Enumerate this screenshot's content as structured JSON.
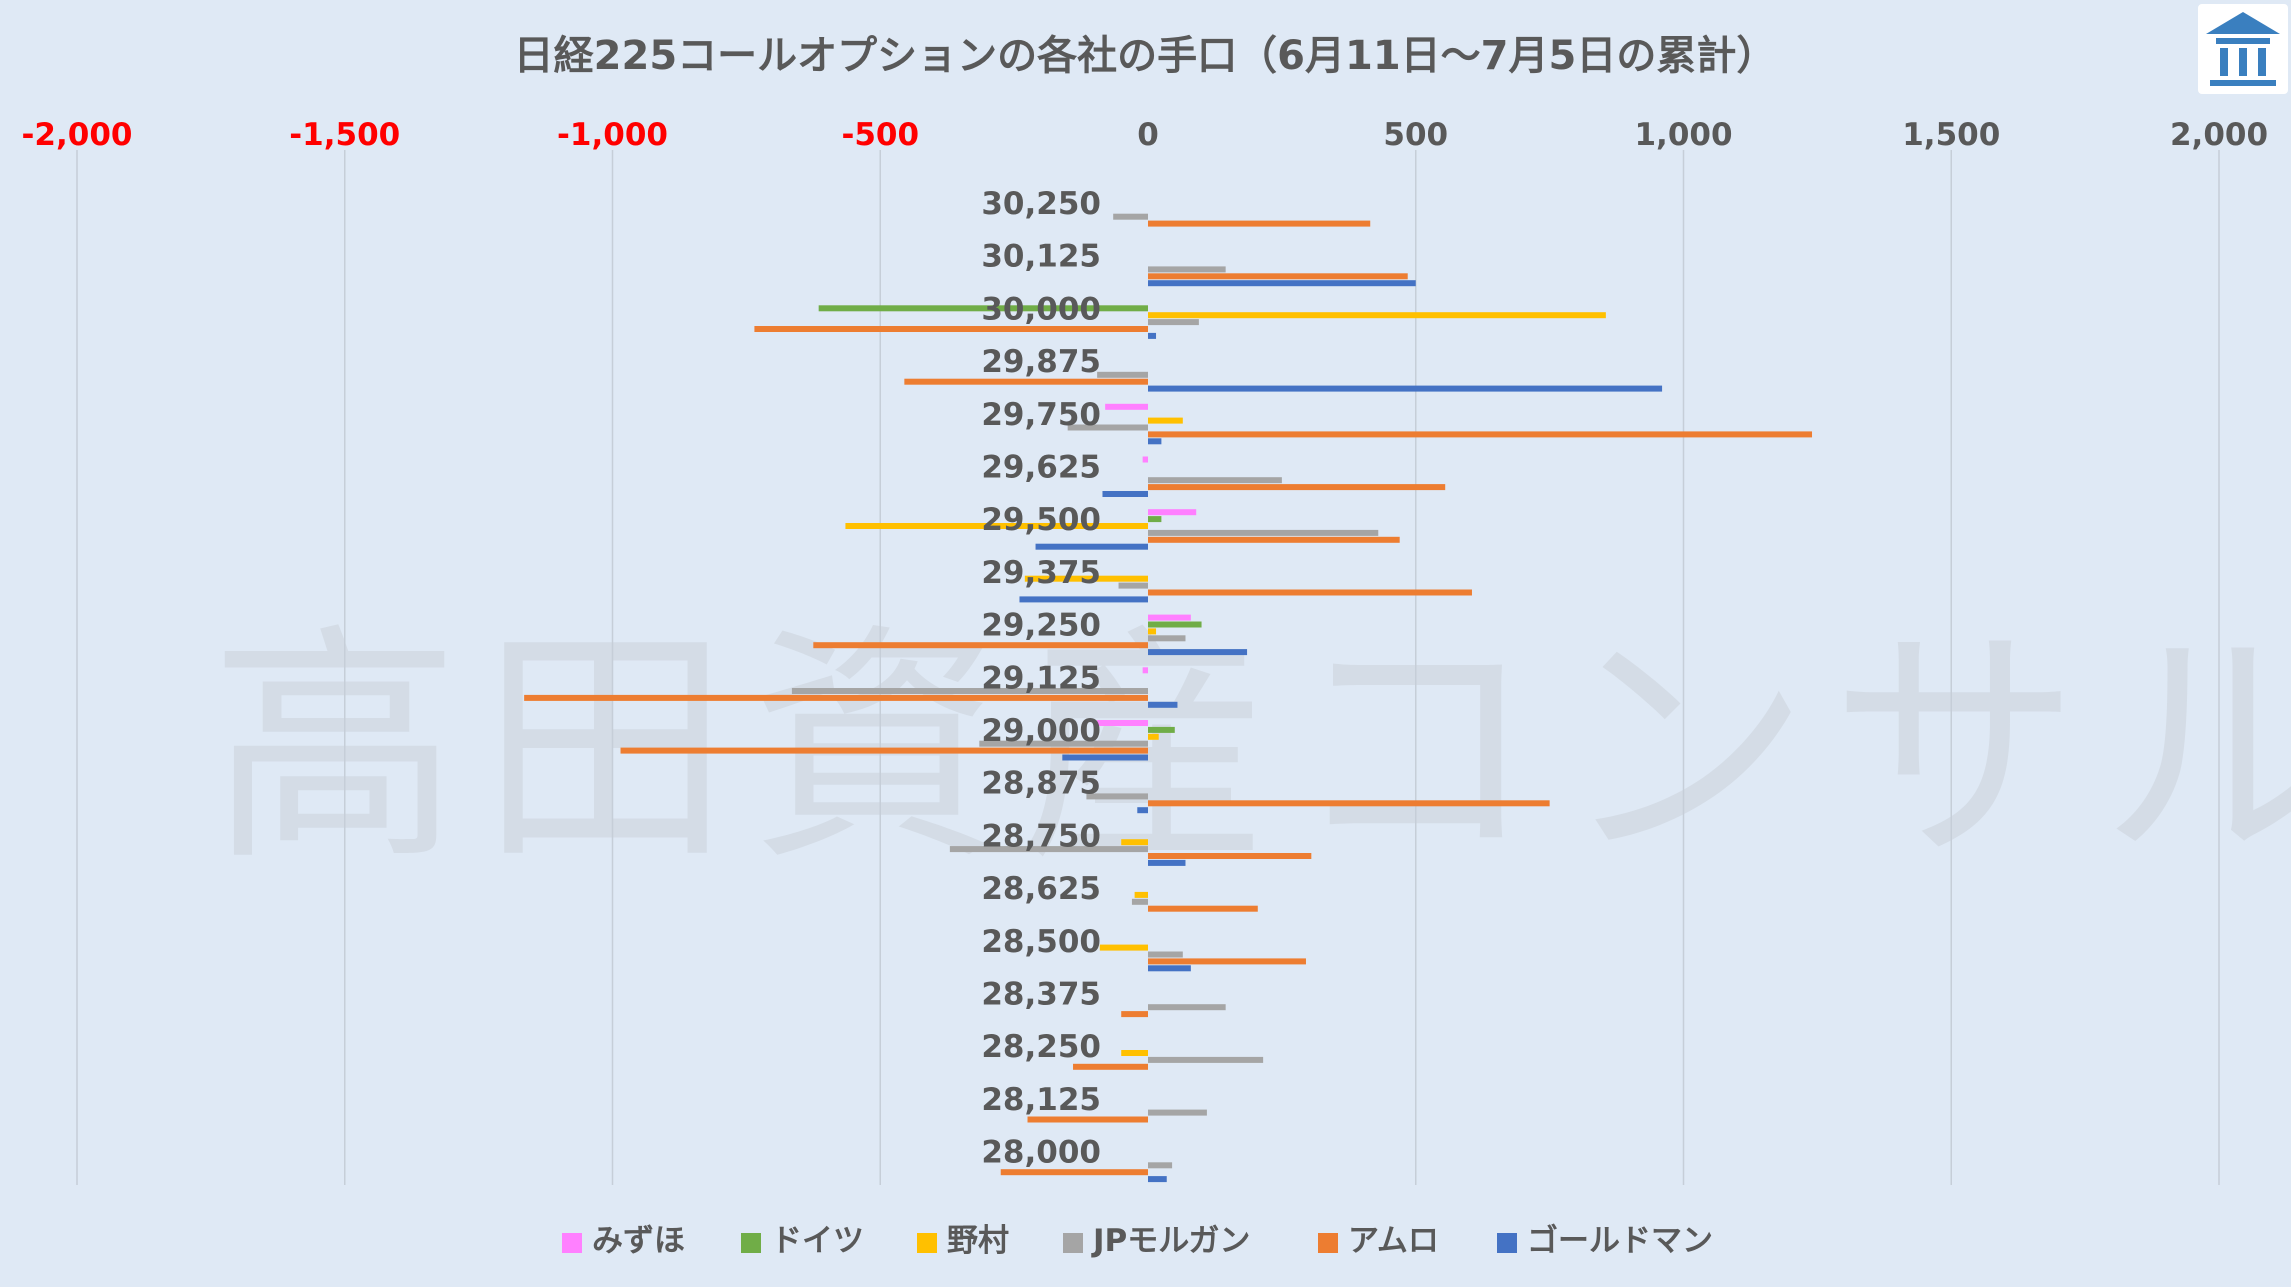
{
  "watermark": "高田資産コンサル",
  "chart_data": {
    "type": "bar",
    "orientation": "horizontal",
    "title": "日経225コールオプションの各社の手口（6月11日～7月5日の累計）",
    "xlabel": "",
    "ylabel": "",
    "xlim": [
      -2000,
      2000
    ],
    "x_ticks": [
      -2000,
      -1500,
      -1000,
      -500,
      0,
      500,
      1000,
      1500,
      2000
    ],
    "x_tick_labels": [
      "-2,000",
      "-1,500",
      "-1,000",
      "-500",
      "0",
      "500",
      "1,000",
      "1,500",
      "2,000"
    ],
    "negative_tick_color": "#ff0000",
    "positive_tick_color": "#595959",
    "axis_position": "top",
    "gridlines": "vertical",
    "legend_position": "bottom",
    "categories": [
      "30,250",
      "30,125",
      "30,000",
      "29,875",
      "29,750",
      "29,625",
      "29,500",
      "29,375",
      "29,250",
      "29,125",
      "29,000",
      "28,875",
      "28,750",
      "28,625",
      "28,500",
      "28,375",
      "28,250",
      "28,125",
      "28,000"
    ],
    "series": [
      {
        "name": "みずほ",
        "color": "#ff80ff",
        "values": [
          0,
          0,
          0,
          0,
          -80,
          -10,
          90,
          0,
          80,
          -10,
          -95,
          0,
          0,
          0,
          0,
          0,
          0,
          0,
          0
        ]
      },
      {
        "name": "ドイツ",
        "color": "#70ad47",
        "values": [
          0,
          0,
          -615,
          0,
          0,
          0,
          25,
          0,
          100,
          0,
          50,
          0,
          0,
          0,
          0,
          0,
          0,
          0,
          0
        ]
      },
      {
        "name": "野村",
        "color": "#ffc000",
        "values": [
          0,
          0,
          855,
          0,
          65,
          0,
          -565,
          -230,
          15,
          0,
          20,
          0,
          -50,
          -25,
          -90,
          0,
          -50,
          0,
          0
        ]
      },
      {
        "name": "JPモルガン",
        "color": "#a5a5a5",
        "values": [
          -65,
          145,
          95,
          -95,
          -150,
          250,
          430,
          -55,
          70,
          -665,
          -315,
          -115,
          -370,
          -30,
          65,
          145,
          215,
          110,
          45
        ]
      },
      {
        "name": "アムロ",
        "color": "#ed7d31",
        "values": [
          415,
          485,
          -735,
          -455,
          1240,
          555,
          470,
          605,
          -625,
          -1165,
          -985,
          750,
          305,
          205,
          295,
          -50,
          -140,
          -225,
          -275
        ]
      },
      {
        "name": "ゴールドマン",
        "color": "#4472c4",
        "values": [
          0,
          500,
          15,
          960,
          25,
          -85,
          -210,
          -240,
          185,
          55,
          -160,
          -20,
          70,
          0,
          80,
          0,
          0,
          0,
          35
        ]
      }
    ]
  }
}
